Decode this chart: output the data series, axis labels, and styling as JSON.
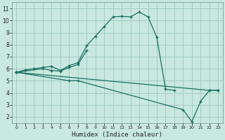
{
  "xlabel": "Humidex (Indice chaleur)",
  "xlim": [
    -0.5,
    23.5
  ],
  "ylim": [
    1.5,
    11.5
  ],
  "yticks": [
    2,
    3,
    4,
    5,
    6,
    7,
    8,
    9,
    10,
    11
  ],
  "xticks": [
    0,
    1,
    2,
    3,
    4,
    5,
    6,
    7,
    8,
    9,
    10,
    11,
    12,
    13,
    14,
    15,
    16,
    17,
    18,
    19,
    20,
    21,
    22,
    23
  ],
  "bg_color": "#c8e8e0",
  "grid_color": "#a0c8c0",
  "line_color": "#1a7060",
  "lines": [
    {
      "x": [
        0,
        1,
        2,
        3,
        4,
        5,
        6,
        7,
        8,
        9,
        10,
        11,
        12,
        13,
        14,
        15,
        16,
        17,
        18
      ],
      "y": [
        5.7,
        5.9,
        6.0,
        6.1,
        6.2,
        5.85,
        6.25,
        6.5,
        7.9,
        8.7,
        9.5,
        10.3,
        10.35,
        10.3,
        10.7,
        10.3,
        8.6,
        4.3,
        4.2
      ]
    },
    {
      "x": [
        0,
        3,
        4,
        5,
        6,
        7,
        8
      ],
      "y": [
        5.7,
        6.0,
        5.85,
        5.8,
        6.1,
        6.35,
        7.5
      ]
    },
    {
      "x": [
        0,
        6,
        7,
        19,
        20,
        21,
        22,
        23
      ],
      "y": [
        5.7,
        5.0,
        5.0,
        2.6,
        1.6,
        3.3,
        4.2,
        4.2
      ]
    },
    {
      "x": [
        0,
        22,
        23
      ],
      "y": [
        5.7,
        4.2,
        4.2
      ]
    }
  ]
}
